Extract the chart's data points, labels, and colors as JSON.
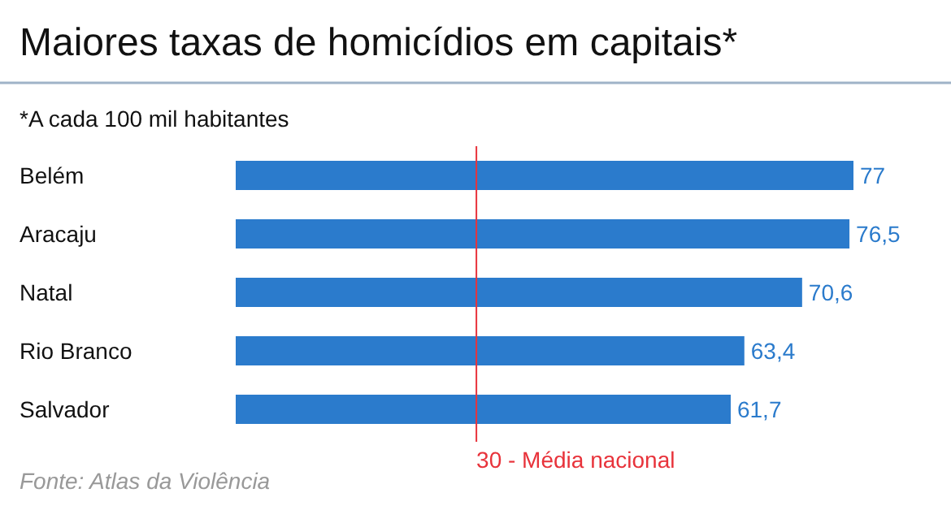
{
  "chart_data": {
    "type": "bar",
    "orientation": "horizontal",
    "title": "Maiores taxas de homicídios em capitais*",
    "subtitle": "*A cada 100 mil habitantes",
    "categories": [
      "Belém",
      "Aracaju",
      "Natal",
      "Rio Branco",
      "Salvador"
    ],
    "values": [
      77,
      76.5,
      70.6,
      63.4,
      61.7
    ],
    "color": "#2b7bcc",
    "value_labels": [
      "77",
      "76,5",
      "70,6",
      "63,4",
      "61,7"
    ],
    "ref_lines": [
      {
        "axis": "x",
        "value": 30,
        "label": "30 - Média nacional",
        "color": "#e8333b"
      }
    ],
    "annotations": [
      "Fonte: Atlas da Violência"
    ]
  }
}
